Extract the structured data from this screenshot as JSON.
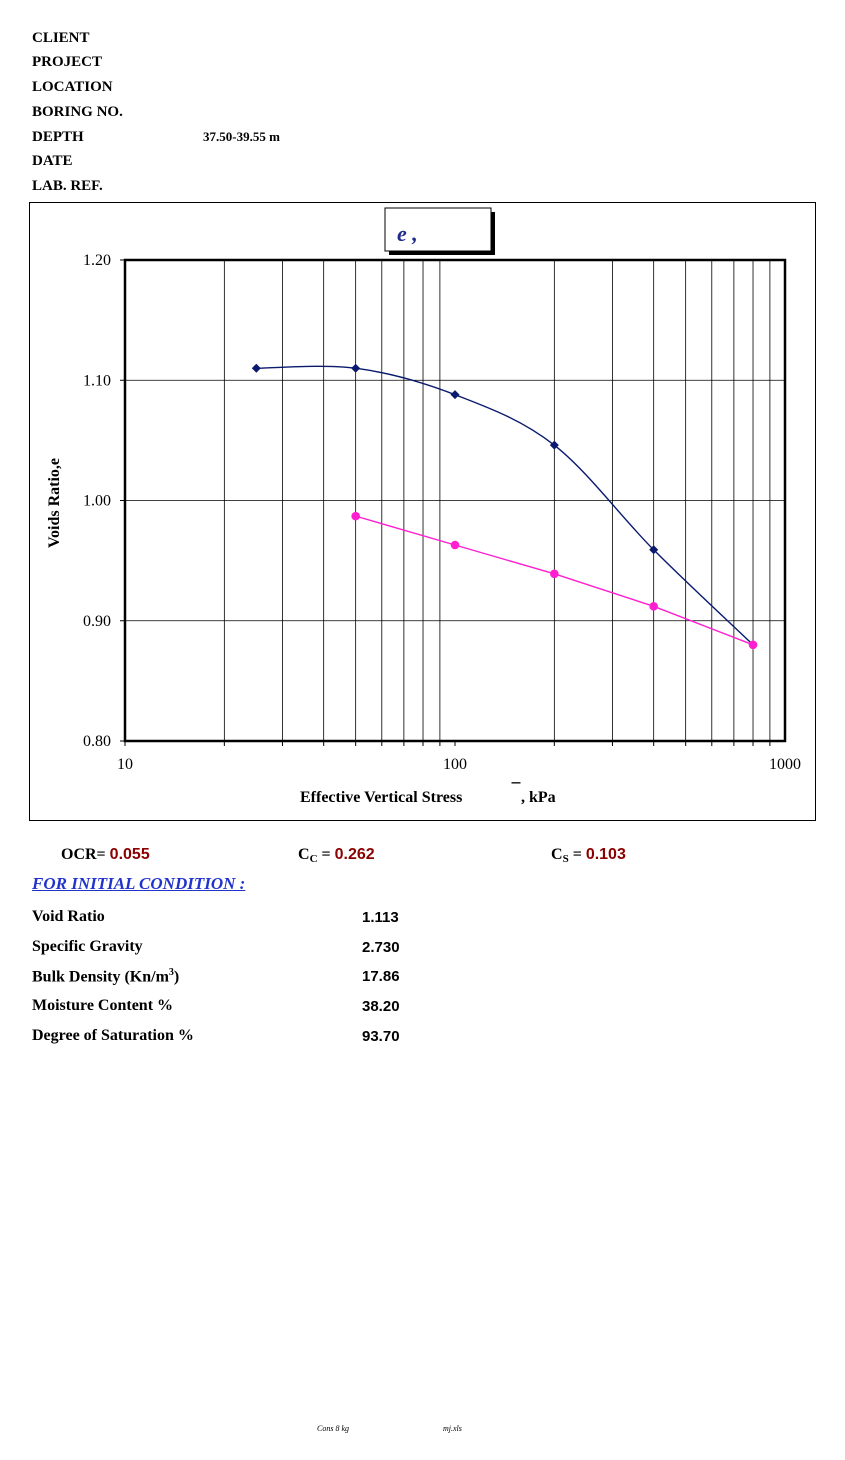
{
  "header": {
    "client_label": "CLIENT",
    "project_label": "PROJECT",
    "location_label": "LOCATION",
    "boring_label": "BORING  NO.",
    "depth_label": "DEPTH",
    "depth_value": "37.50-39.55 m",
    "date_label": "DATE",
    "labref_label": "LAB. REF."
  },
  "chart_data": {
    "type": "line",
    "title": "e ,",
    "xlabel": "Effective Vertical Stress",
    "xlabel_suffix": ", kPa",
    "ylabel": "Voids Ratio,e",
    "x_scale": "log",
    "xlim": [
      10,
      1000
    ],
    "ylim": [
      0.8,
      1.2
    ],
    "x_tick_labels": [
      "10",
      "100",
      "1000"
    ],
    "y_tick_labels": [
      "0.80",
      "0.90",
      "1.00",
      "1.10",
      "1.20"
    ],
    "grid": true,
    "series": [
      {
        "color": "#0a1a6e",
        "marker": "diamond",
        "x": [
          25,
          50,
          100,
          200,
          400,
          800
        ],
        "y": [
          1.11,
          1.11,
          1.088,
          1.046,
          0.959,
          0.88
        ]
      },
      {
        "color": "#ff1fd0",
        "marker": "circle",
        "x": [
          50,
          100,
          200,
          400,
          800
        ],
        "y": [
          0.987,
          0.963,
          0.939,
          0.912,
          0.88
        ]
      }
    ]
  },
  "results": {
    "ocr_label": "OCR=",
    "ocr_value": "0.055",
    "cc_label": "C",
    "cc_sub": "C",
    "cc_eq": " =",
    "cc_value": "0.262",
    "cs_label": "C",
    "cs_sub": "S",
    "cs_eq": " =",
    "cs_value": "0.103"
  },
  "initial": {
    "title": "FOR INITIAL CONDITION :",
    "rows": [
      {
        "label": "Void Ratio",
        "value": "1.113"
      },
      {
        "label": "Specific Gravity",
        "value": "2.730"
      },
      {
        "label": "Bulk Density (Kn/m",
        "label_sup": "3",
        "label_end": ")",
        "value": "17.86"
      },
      {
        "label": "Moisture Content %",
        "value": "38.20"
      },
      {
        "label": "Degree of Saturation %",
        "value": "93.70"
      }
    ]
  },
  "footer": {
    "left": "Cons 8 kg",
    "right": "mj.xls"
  }
}
